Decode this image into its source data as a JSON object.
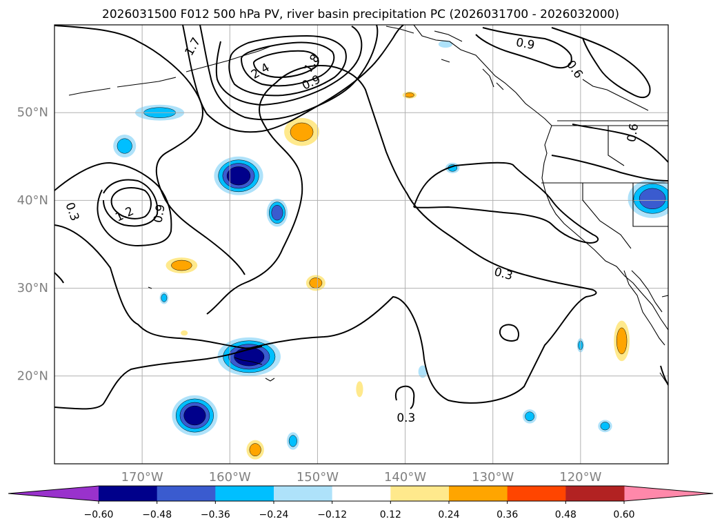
{
  "chart_data": {
    "type": "map-contour",
    "title": "2026031500 F012 500 hPa PV, river basin precipitation PC (2026031700 - 2026032000)",
    "projection": "PlateCarree",
    "lon_range": [
      -180,
      -110
    ],
    "lat_range": [
      10,
      60
    ],
    "lon_ticks": [
      {
        "lon": -170,
        "label": "170°W"
      },
      {
        "lon": -160,
        "label": "160°W"
      },
      {
        "lon": -150,
        "label": "150°W"
      },
      {
        "lon": -140,
        "label": "140°W"
      },
      {
        "lon": -130,
        "label": "130°W"
      },
      {
        "lon": -120,
        "label": "120°W"
      }
    ],
    "lat_ticks": [
      {
        "lat": 20,
        "label": "20°N"
      },
      {
        "lat": 30,
        "label": "30°N"
      },
      {
        "lat": 40,
        "label": "40°N"
      },
      {
        "lat": 50,
        "label": "50°N"
      }
    ],
    "grid": true,
    "pv_contour_labels": [
      {
        "text": "0.3",
        "lon": -178.0,
        "lat": 38.7,
        "rotate": 70
      },
      {
        "text": "1.2",
        "lon": -172.0,
        "lat": 38.4,
        "rotate": -25
      },
      {
        "text": "0.9",
        "lon": -168.0,
        "lat": 38.5,
        "rotate": -80
      },
      {
        "text": "1.7",
        "lon": -164.2,
        "lat": 57.5,
        "rotate": -60
      },
      {
        "text": "2.4",
        "lon": -156.5,
        "lat": 54.7,
        "rotate": -30
      },
      {
        "text": "1.8",
        "lon": -150.6,
        "lat": 55.6,
        "rotate": -60
      },
      {
        "text": "0.9",
        "lon": -150.7,
        "lat": 53.4,
        "rotate": -25
      },
      {
        "text": "0.9",
        "lon": -126.3,
        "lat": 57.8,
        "rotate": 10
      },
      {
        "text": "0.6",
        "lon": -120.7,
        "lat": 54.9,
        "rotate": 55
      },
      {
        "text": "0.6",
        "lon": -114.0,
        "lat": 47.7,
        "rotate": -80
      },
      {
        "text": "0.3",
        "lon": -128.8,
        "lat": 31.6,
        "rotate": 15
      },
      {
        "text": "0.3",
        "lon": -139.9,
        "lat": 15.2,
        "rotate": 0
      }
    ],
    "colorbar": {
      "levels": [
        -0.6,
        -0.48,
        -0.36,
        -0.24,
        -0.12,
        0.12,
        0.24,
        0.36,
        0.48,
        0.6
      ],
      "tick_labels": [
        "−0.60",
        "−0.48",
        "−0.36",
        "−0.24",
        "−0.12",
        "0.12",
        "0.24",
        "0.36",
        "0.48",
        "0.60"
      ],
      "colors": [
        "#9932cc",
        "#00008b",
        "#3a5bcf",
        "#00bfff",
        "#aee2fa",
        "#ffffff",
        "#ffe98c",
        "#ffa500",
        "#ff4500",
        "#b22222",
        "#ff88aa"
      ],
      "extend": "both"
    },
    "precip_pc_blobs": [
      {
        "lon": -168.0,
        "lat": 50.0,
        "rx": 2.8,
        "ry": 0.9,
        "value": -0.3
      },
      {
        "lon": -172.0,
        "lat": 46.2,
        "rx": 1.3,
        "ry": 1.3,
        "value": -0.3
      },
      {
        "lon": -159.0,
        "lat": 42.8,
        "rx": 2.8,
        "ry": 2.2,
        "value": -0.5
      },
      {
        "lon": -154.6,
        "lat": 38.6,
        "rx": 1.2,
        "ry": 1.6,
        "value": -0.45
      },
      {
        "lon": -151.8,
        "lat": 47.8,
        "rx": 2.0,
        "ry": 1.6,
        "value": 0.3
      },
      {
        "lon": -139.5,
        "lat": 52.0,
        "rx": 0.8,
        "ry": 0.4,
        "value": 0.3
      },
      {
        "lon": -135.4,
        "lat": 57.8,
        "rx": 0.8,
        "ry": 0.4,
        "value": -0.2
      },
      {
        "lon": -134.6,
        "lat": 43.7,
        "rx": 0.8,
        "ry": 0.6,
        "value": -0.3
      },
      {
        "lon": -111.8,
        "lat": 40.2,
        "rx": 2.8,
        "ry": 2.2,
        "value": -0.45
      },
      {
        "lon": -165.5,
        "lat": 32.6,
        "rx": 1.8,
        "ry": 0.9,
        "value": 0.3
      },
      {
        "lon": -150.2,
        "lat": 30.6,
        "rx": 1.1,
        "ry": 0.9,
        "value": 0.3
      },
      {
        "lon": -167.5,
        "lat": 28.9,
        "rx": 0.5,
        "ry": 0.7,
        "value": -0.25
      },
      {
        "lon": -165.2,
        "lat": 24.9,
        "rx": 0.4,
        "ry": 0.3,
        "value": 0.2
      },
      {
        "lon": -157.8,
        "lat": 22.2,
        "rx": 3.6,
        "ry": 2.2,
        "value": -0.5
      },
      {
        "lon": -164.0,
        "lat": 15.5,
        "rx": 2.6,
        "ry": 2.3,
        "value": -0.5
      },
      {
        "lon": -145.2,
        "lat": 18.5,
        "rx": 0.4,
        "ry": 0.9,
        "value": 0.2
      },
      {
        "lon": -138.0,
        "lat": 20.5,
        "rx": 0.5,
        "ry": 0.7,
        "value": -0.2
      },
      {
        "lon": -125.8,
        "lat": 15.4,
        "rx": 0.8,
        "ry": 0.8,
        "value": -0.3
      },
      {
        "lon": -120.0,
        "lat": 23.5,
        "rx": 0.4,
        "ry": 0.8,
        "value": -0.25
      },
      {
        "lon": -117.2,
        "lat": 14.3,
        "rx": 0.8,
        "ry": 0.7,
        "value": -0.3
      },
      {
        "lon": -115.3,
        "lat": 24.0,
        "rx": 0.9,
        "ry": 2.3,
        "value": 0.3
      },
      {
        "lon": -157.1,
        "lat": 11.6,
        "rx": 1.0,
        "ry": 1.1,
        "value": 0.3
      },
      {
        "lon": -152.8,
        "lat": 12.6,
        "rx": 0.7,
        "ry": 1.0,
        "value": -0.25
      }
    ]
  }
}
